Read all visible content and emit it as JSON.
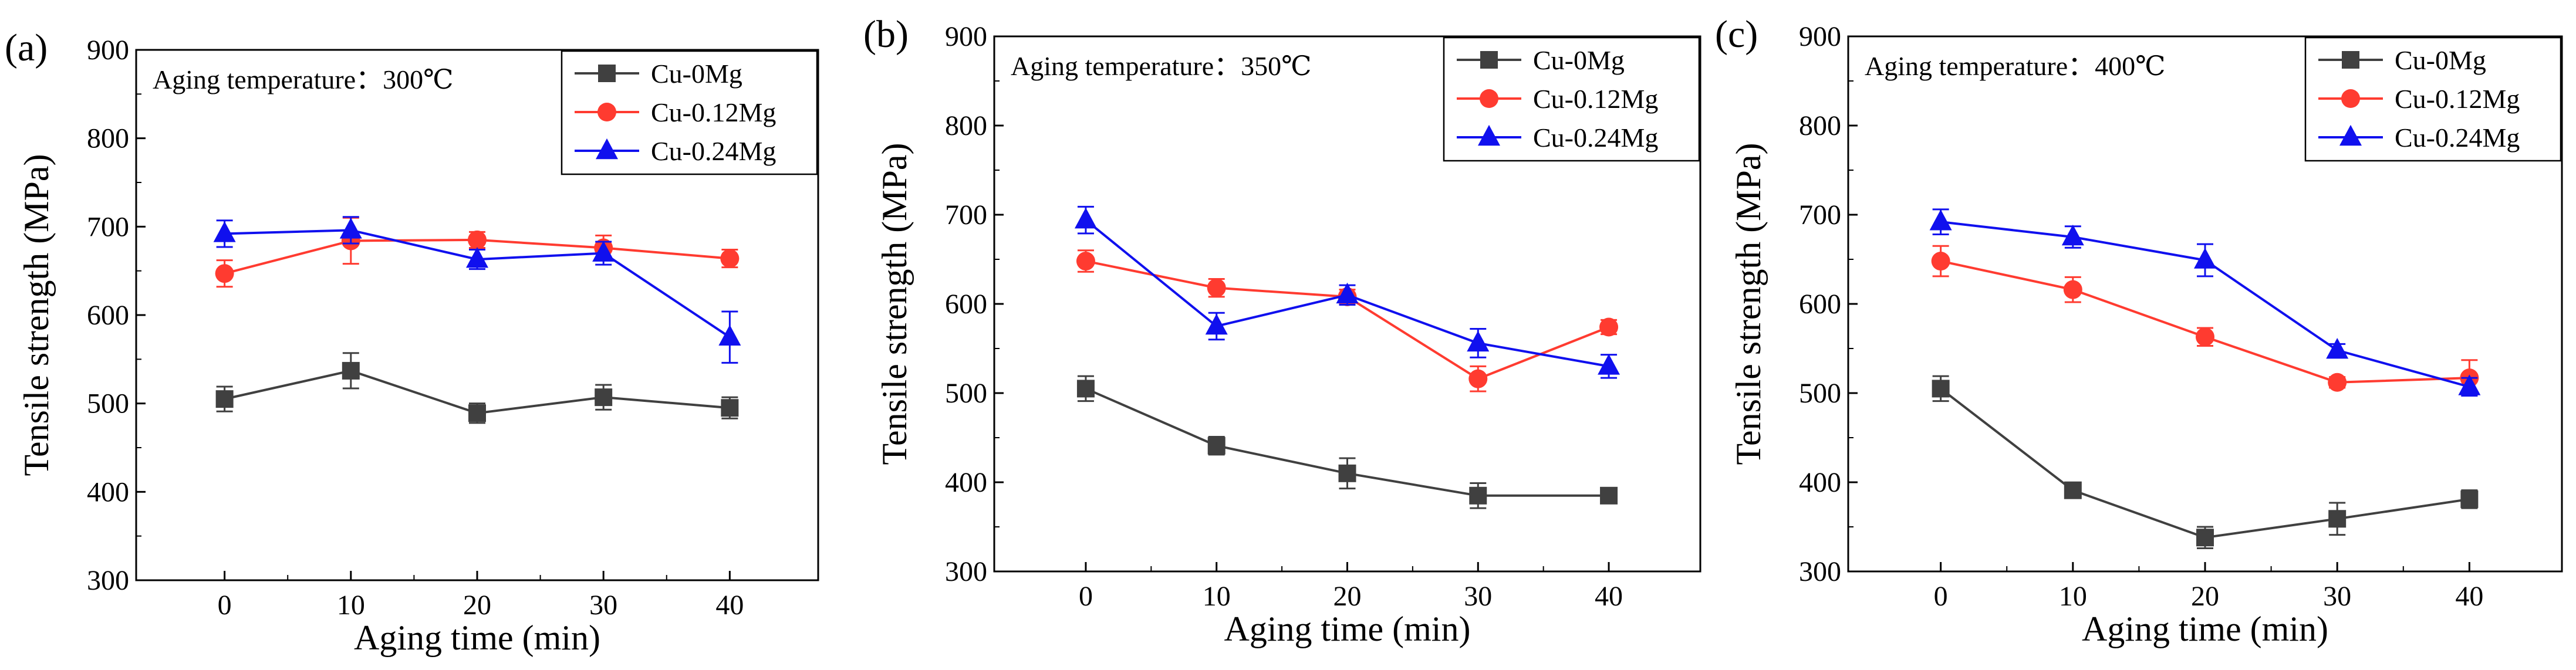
{
  "chart_data": [
    {
      "type": "line",
      "panel_label": "(a)",
      "annotation": "Aging temperature：300℃",
      "xlabel": "Aging time (min)",
      "ylabel": "Tensile strength (MPa)",
      "x": [
        0,
        10,
        20,
        30,
        40
      ],
      "xticks": [
        "0",
        "10",
        "20",
        "30",
        "40"
      ],
      "xlim": [
        -7,
        47
      ],
      "ylim": [
        300,
        900
      ],
      "yticks": [
        "300",
        "400",
        "500",
        "600",
        "700",
        "800",
        "900"
      ],
      "legend_position": "top-right",
      "series": [
        {
          "name": "Cu-0Mg",
          "color": "#404040",
          "marker": "square",
          "values": [
            505,
            537,
            489,
            507,
            495
          ],
          "errors": [
            14,
            20,
            11,
            14,
            12
          ]
        },
        {
          "name": "Cu-0.12Mg",
          "color": "#ff3b30",
          "marker": "circle",
          "values": [
            647,
            684,
            685,
            676,
            664
          ],
          "errors": [
            15,
            26,
            9,
            14,
            10
          ]
        },
        {
          "name": "Cu-0.24Mg",
          "color": "#1010ee",
          "marker": "triangle",
          "values": [
            692,
            696,
            663,
            670,
            575
          ],
          "errors": [
            15,
            15,
            11,
            13,
            29
          ]
        }
      ]
    },
    {
      "type": "line",
      "panel_label": "(b)",
      "annotation": "Aging temperature：350℃",
      "xlabel": "Aging time (min)",
      "ylabel": "Tensile strength (MPa)",
      "x": [
        0,
        10,
        20,
        30,
        40
      ],
      "xticks": [
        "0",
        "10",
        "20",
        "30",
        "40"
      ],
      "xlim": [
        -7,
        47
      ],
      "ylim": [
        300,
        900
      ],
      "yticks": [
        "300",
        "400",
        "500",
        "600",
        "700",
        "800",
        "900"
      ],
      "legend_position": "top-right",
      "series": [
        {
          "name": "Cu-0Mg",
          "color": "#404040",
          "marker": "square",
          "values": [
            505,
            441,
            410,
            385,
            385
          ],
          "errors": [
            14,
            10,
            17,
            14,
            6
          ]
        },
        {
          "name": "Cu-0.12Mg",
          "color": "#ff3b30",
          "marker": "circle",
          "values": [
            648,
            618,
            608,
            516,
            574
          ],
          "errors": [
            12,
            10,
            8,
            14,
            8
          ]
        },
        {
          "name": "Cu-0.24Mg",
          "color": "#1010ee",
          "marker": "triangle",
          "values": [
            694,
            575,
            610,
            556,
            530
          ],
          "errors": [
            15,
            15,
            11,
            16,
            13
          ]
        }
      ]
    },
    {
      "type": "line",
      "panel_label": "(c)",
      "annotation": "Aging temperature：400℃",
      "xlabel": "Aging time (min)",
      "ylabel": "Tensile strength (MPa)",
      "x": [
        0,
        10,
        20,
        30,
        40
      ],
      "xticks": [
        "0",
        "10",
        "20",
        "30",
        "40"
      ],
      "xlim": [
        -7,
        47
      ],
      "ylim": [
        300,
        900
      ],
      "yticks": [
        "300",
        "400",
        "500",
        "600",
        "700",
        "800",
        "900"
      ],
      "legend_position": "top-right",
      "series": [
        {
          "name": "Cu-0Mg",
          "color": "#404040",
          "marker": "square",
          "values": [
            505,
            391,
            338,
            359,
            381
          ],
          "errors": [
            14,
            6,
            12,
            18,
            10
          ]
        },
        {
          "name": "Cu-0.12Mg",
          "color": "#ff3b30",
          "marker": "circle",
          "values": [
            648,
            616,
            563,
            512,
            517
          ],
          "errors": [
            17,
            14,
            10,
            6,
            20
          ]
        },
        {
          "name": "Cu-0.24Mg",
          "color": "#1010ee",
          "marker": "triangle",
          "values": [
            692,
            675,
            649,
            548,
            507
          ],
          "errors": [
            14,
            12,
            18,
            7,
            10
          ]
        }
      ]
    }
  ]
}
